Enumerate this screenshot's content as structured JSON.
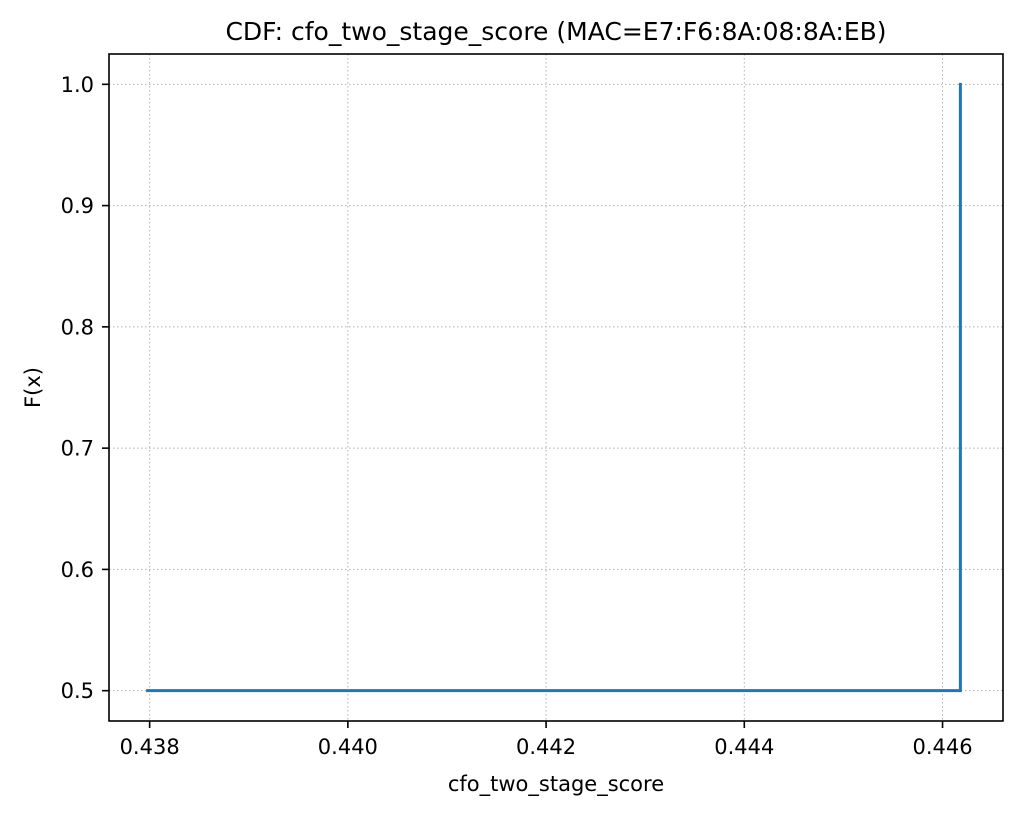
{
  "chart_data": {
    "type": "line",
    "title": "CDF: cfo_two_stage_score (MAC=E7:F6:8A:08:8A:EB)",
    "xlabel": "cfo_two_stage_score",
    "ylabel": "F(x)",
    "xlim": [
      0.43759,
      0.44661
    ],
    "ylim": [
      0.475,
      1.025
    ],
    "x_ticks": [
      0.438,
      0.44,
      0.442,
      0.444,
      0.446
    ],
    "x_tick_labels": [
      "0.438",
      "0.440",
      "0.442",
      "0.444",
      "0.446"
    ],
    "y_ticks": [
      0.5,
      0.6,
      0.7,
      0.8,
      0.9,
      1.0
    ],
    "y_tick_labels": [
      "0.5",
      "0.6",
      "0.7",
      "0.8",
      "0.9",
      "1.0"
    ],
    "grid": true,
    "grid_style": "dotted",
    "series": [
      {
        "color": "#1f77b4",
        "step": "post",
        "x": [
          0.43798,
          0.44618,
          0.44618
        ],
        "y": [
          0.5,
          0.5,
          1.0
        ]
      }
    ]
  }
}
